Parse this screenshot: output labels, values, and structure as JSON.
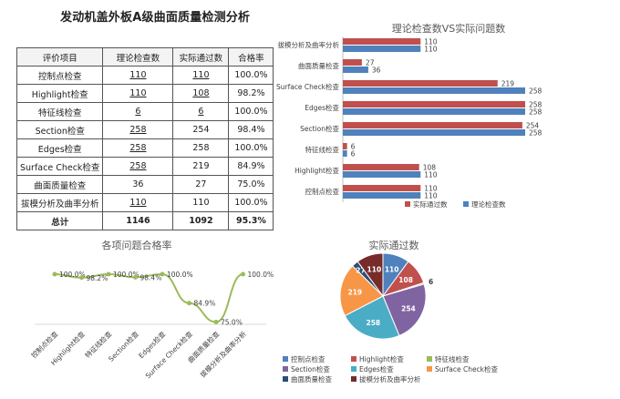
{
  "page": {
    "title": "发动机盖外板A级曲面质量检测分析"
  },
  "table": {
    "headers": [
      "评价项目",
      "理论检查数",
      "实际通过数",
      "合格率"
    ],
    "rows": [
      {
        "item": "控制点检查",
        "theory": "110",
        "actual": "110",
        "rate": "100.0%",
        "theory_u": true,
        "actual_u": true
      },
      {
        "item": "Highlight检查",
        "theory": "110",
        "actual": "108",
        "rate": "98.2%",
        "theory_u": true,
        "actual_u": true
      },
      {
        "item": "特征线检查",
        "theory": "6",
        "actual": "6",
        "rate": "100.0%",
        "theory_u": true,
        "actual_u": true
      },
      {
        "item": "Section检查",
        "theory": "258",
        "actual": "254",
        "rate": "98.4%",
        "theory_u": true,
        "actual_u": false
      },
      {
        "item": "Edges检查",
        "theory": "258",
        "actual": "258",
        "rate": "100.0%",
        "theory_u": true,
        "actual_u": false
      },
      {
        "item": "Surface Check检查",
        "theory": "258",
        "actual": "219",
        "rate": "84.9%",
        "theory_u": true,
        "actual_u": false
      },
      {
        "item": "曲面质量检查",
        "theory": "36",
        "actual": "27",
        "rate": "75.0%",
        "theory_u": false,
        "actual_u": false
      },
      {
        "item": "拔模分析及曲率分析",
        "theory": "110",
        "actual": "110",
        "rate": "100.0%",
        "theory_u": true,
        "actual_u": false
      }
    ],
    "total": {
      "item": "总计",
      "theory": "1146",
      "actual": "1092",
      "rate": "95.3%"
    }
  },
  "chart_data": [
    {
      "type": "bar",
      "orientation": "horizontal",
      "title": "理论检查数VS实际问题数",
      "categories": [
        "拔模分析及曲率分析",
        "曲面质量检查",
        "Surface Check检查",
        "Edges检查",
        "Section检查",
        "特征线检查",
        "Highlight检查",
        "控制点检查"
      ],
      "series": [
        {
          "name": "实际通过数",
          "color": "#c0504d",
          "values": [
            110,
            27,
            219,
            258,
            254,
            6,
            108,
            110
          ]
        },
        {
          "name": "理论检查数",
          "color": "#4f81bd",
          "values": [
            110,
            36,
            258,
            258,
            258,
            6,
            110,
            110
          ]
        }
      ],
      "legend": "bottom",
      "grid": false
    },
    {
      "type": "line",
      "title": "各项问题合格率",
      "categories": [
        "控制点检查",
        "Highlight检查",
        "特征线检查",
        "Section检查",
        "Edges检查",
        "Surface Check检查",
        "曲面质量检查",
        "拔模分析及曲率分析"
      ],
      "values": [
        100.0,
        98.2,
        100.0,
        98.4,
        100.0,
        84.9,
        75.0,
        100.0
      ],
      "labels": [
        "100.0%",
        "98.2%",
        "100.0%",
        "98.4%",
        "100.0%",
        "84.9%",
        "75.0%",
        "100.0%"
      ],
      "color": "#9bbb59",
      "grid": false
    },
    {
      "type": "pie",
      "title": "实际通过数",
      "categories": [
        "控制点检查",
        "Highlight检查",
        "特征线检查",
        "Section检查",
        "Edges检查",
        "Surface Check检查",
        "曲面质量检查",
        "拔模分析及曲率分析"
      ],
      "values": [
        110,
        108,
        6,
        254,
        258,
        219,
        27,
        110
      ],
      "colors": [
        "#4f81bd",
        "#c0504d",
        "#9bbb59",
        "#8064a2",
        "#4bacc6",
        "#f79646",
        "#2c4d75",
        "#772c2a"
      ],
      "legend": "bottom"
    }
  ]
}
